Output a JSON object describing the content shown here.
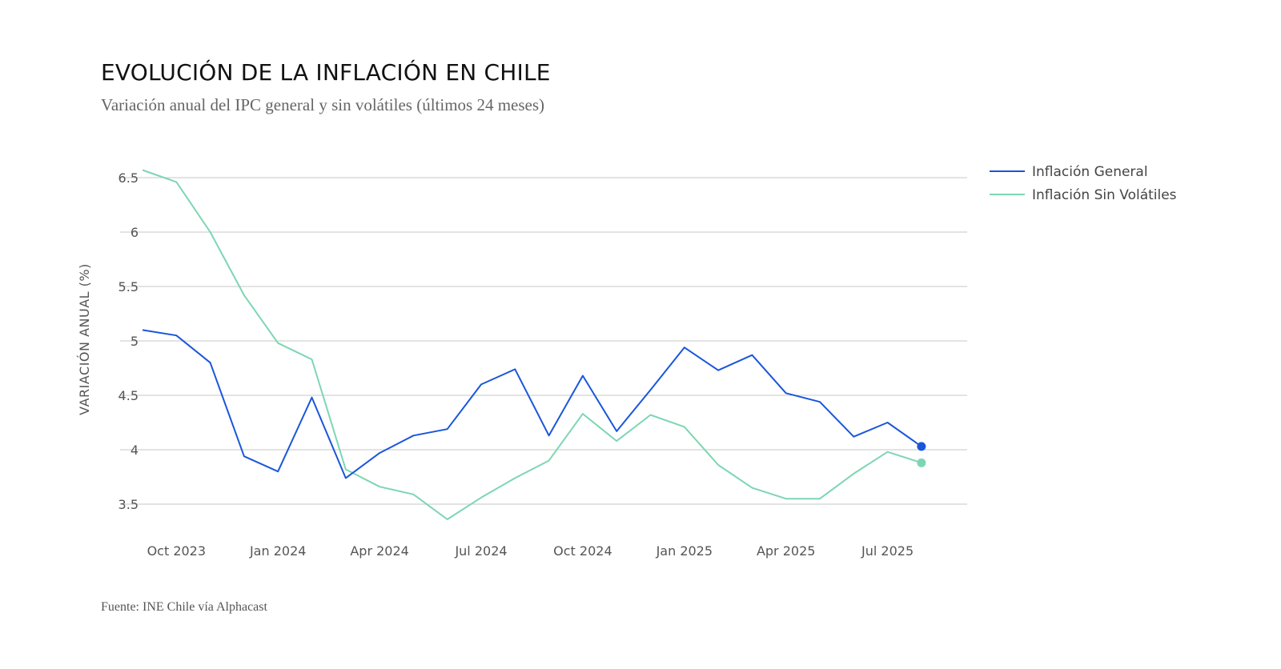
{
  "title": "EVOLUCIÓN DE LA INFLACIÓN EN CHILE",
  "subtitle": "Variación anual del IPC general y sin volátiles (últimos 24 meses)",
  "source": "Fuente: INE Chile vía Alphacast",
  "chart_data": {
    "type": "line",
    "ylabel": "VARIACIÓN ANUAL (%)",
    "xlabel": "",
    "ylim": [
      3.2,
      6.6
    ],
    "yticks": [
      3.5,
      4,
      4.5,
      5,
      5.5,
      6,
      6.5
    ],
    "grid": true,
    "legend_position": "top-right",
    "x": [
      "2023-09",
      "2023-10",
      "2023-11",
      "2023-12",
      "2024-01",
      "2024-02",
      "2024-03",
      "2024-04",
      "2024-05",
      "2024-06",
      "2024-07",
      "2024-08",
      "2024-09",
      "2024-10",
      "2024-11",
      "2024-12",
      "2025-01",
      "2025-02",
      "2025-03",
      "2025-04",
      "2025-05",
      "2025-06",
      "2025-07",
      "2025-08"
    ],
    "xtick_labels": [
      {
        "x": "2023-10",
        "label": "Oct 2023"
      },
      {
        "x": "2024-01",
        "label": "Jan 2024"
      },
      {
        "x": "2024-04",
        "label": "Apr 2024"
      },
      {
        "x": "2024-07",
        "label": "Jul 2024"
      },
      {
        "x": "2024-10",
        "label": "Oct 2024"
      },
      {
        "x": "2025-01",
        "label": "Jan 2025"
      },
      {
        "x": "2025-04",
        "label": "Apr 2025"
      },
      {
        "x": "2025-07",
        "label": "Jul 2025"
      }
    ],
    "series": [
      {
        "name": "Inflación General",
        "color": "#1a56db",
        "values": [
          5.1,
          5.05,
          4.8,
          3.94,
          3.8,
          4.48,
          3.74,
          3.97,
          4.13,
          4.19,
          4.6,
          4.74,
          4.13,
          4.68,
          4.17,
          4.55,
          4.94,
          4.73,
          4.87,
          4.52,
          4.44,
          4.12,
          4.25,
          4.03
        ]
      },
      {
        "name": "Inflación Sin Volátiles",
        "color": "#7dd6b3",
        "values": [
          6.57,
          6.46,
          6.0,
          5.42,
          4.98,
          4.83,
          3.82,
          3.66,
          3.59,
          3.36,
          3.56,
          3.74,
          3.9,
          4.33,
          4.08,
          4.32,
          4.21,
          3.86,
          3.65,
          3.55,
          3.55,
          3.78,
          3.98,
          3.88
        ]
      }
    ]
  }
}
